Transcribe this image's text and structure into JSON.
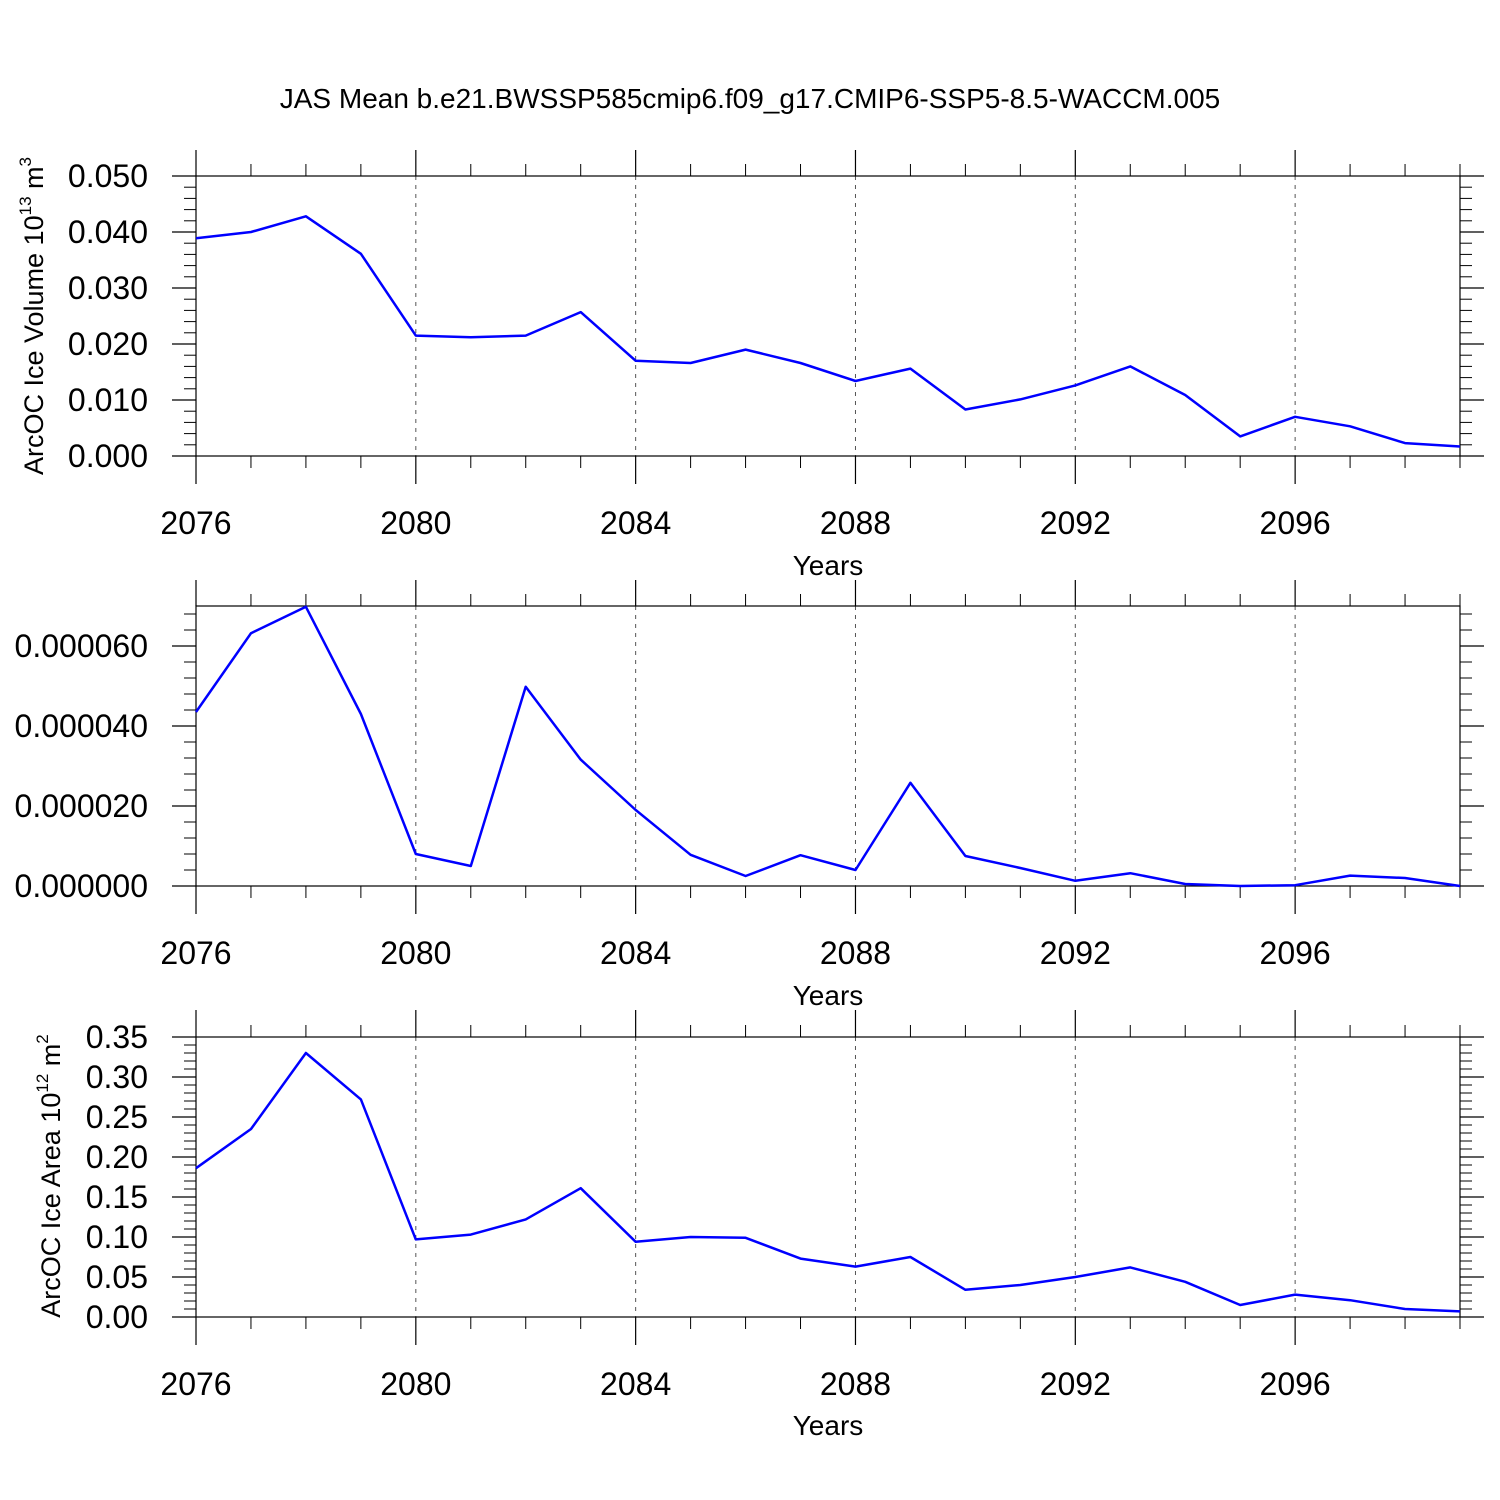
{
  "title": "JAS Mean b.e21.BWSSP585cmip6.f09_g17.CMIP6-SSP5-8.5-WACCM.005",
  "chart_data": [
    {
      "type": "line",
      "title": "JAS Mean b.e21.BWSSP585cmip6.f09_g17.CMIP6-SSP5-8.5-WACCM.005",
      "xlabel": "Years",
      "ylabel": "ArcOC Ice Volume",
      "ylabel_units_base": "10",
      "ylabel_units_exp": "13",
      "ylabel_units_unit": "m",
      "ylabel_units_unit_exp": "3",
      "xlim": [
        2076,
        2099
      ],
      "ylim": [
        0.0,
        0.05
      ],
      "xticks": [
        2076,
        2080,
        2084,
        2088,
        2092,
        2096
      ],
      "yticks": [
        0.0,
        0.01,
        0.02,
        0.03,
        0.04,
        0.05
      ],
      "ytick_labels": [
        "0.000",
        "0.010",
        "0.020",
        "0.030",
        "0.040",
        "0.050"
      ],
      "line_color": "#0000ff",
      "x": [
        2076,
        2077,
        2078,
        2079,
        2080,
        2081,
        2082,
        2083,
        2084,
        2085,
        2086,
        2087,
        2088,
        2089,
        2090,
        2091,
        2092,
        2093,
        2094,
        2095,
        2096,
        2097,
        2098,
        2099
      ],
      "values": [
        0.0389,
        0.04,
        0.0428,
        0.0361,
        0.0215,
        0.0212,
        0.0215,
        0.0257,
        0.017,
        0.0166,
        0.019,
        0.0166,
        0.0134,
        0.0156,
        0.0083,
        0.0101,
        0.0126,
        0.016,
        0.0109,
        0.0035,
        0.007,
        0.0053,
        0.0023,
        0.0017
      ]
    },
    {
      "type": "line",
      "xlabel": "Years",
      "ylabel": "",
      "xlim": [
        2076,
        2099
      ],
      "ylim": [
        0.0,
        7e-05
      ],
      "xticks": [
        2076,
        2080,
        2084,
        2088,
        2092,
        2096
      ],
      "yticks": [
        0.0,
        2e-05,
        4e-05,
        6e-05
      ],
      "ytick_labels": [
        "0.000000",
        "0.000020",
        "0.000040",
        "0.000060"
      ],
      "line_color": "#0000ff",
      "x": [
        2076,
        2077,
        2078,
        2079,
        2080,
        2081,
        2082,
        2083,
        2084,
        2085,
        2086,
        2087,
        2088,
        2089,
        2090,
        2091,
        2092,
        2093,
        2094,
        2095,
        2096,
        2097,
        2098,
        2099
      ],
      "values": [
        4.35e-05,
        6.32e-05,
        6.98e-05,
        4.3e-05,
        8e-06,
        5e-06,
        4.98e-05,
        3.16e-05,
        1.9e-05,
        7.8e-06,
        2.5e-06,
        7.7e-06,
        4e-06,
        2.58e-05,
        7.5e-06,
        4.5e-06,
        1.3e-06,
        3.2e-06,
        5e-07,
        0.0,
        2e-07,
        2.6e-06,
        2e-06,
        0.0
      ]
    },
    {
      "type": "line",
      "xlabel": "Years",
      "ylabel": "ArcOC Ice Area",
      "ylabel_units_base": "10",
      "ylabel_units_exp": "12",
      "ylabel_units_unit": "m",
      "ylabel_units_unit_exp": "2",
      "xlim": [
        2076,
        2099
      ],
      "ylim": [
        0.0,
        0.35
      ],
      "xticks": [
        2076,
        2080,
        2084,
        2088,
        2092,
        2096
      ],
      "yticks": [
        0.0,
        0.05,
        0.1,
        0.15,
        0.2,
        0.25,
        0.3,
        0.35
      ],
      "ytick_labels": [
        "0.00",
        "0.05",
        "0.10",
        "0.15",
        "0.20",
        "0.25",
        "0.30",
        "0.35"
      ],
      "line_color": "#0000ff",
      "x": [
        2076,
        2077,
        2078,
        2079,
        2080,
        2081,
        2082,
        2083,
        2084,
        2085,
        2086,
        2087,
        2088,
        2089,
        2090,
        2091,
        2092,
        2093,
        2094,
        2095,
        2096,
        2097,
        2098,
        2099
      ],
      "values": [
        0.186,
        0.235,
        0.33,
        0.272,
        0.097,
        0.103,
        0.122,
        0.161,
        0.094,
        0.1,
        0.099,
        0.073,
        0.063,
        0.075,
        0.034,
        0.04,
        0.05,
        0.062,
        0.044,
        0.015,
        0.028,
        0.021,
        0.01,
        0.007
      ]
    }
  ]
}
